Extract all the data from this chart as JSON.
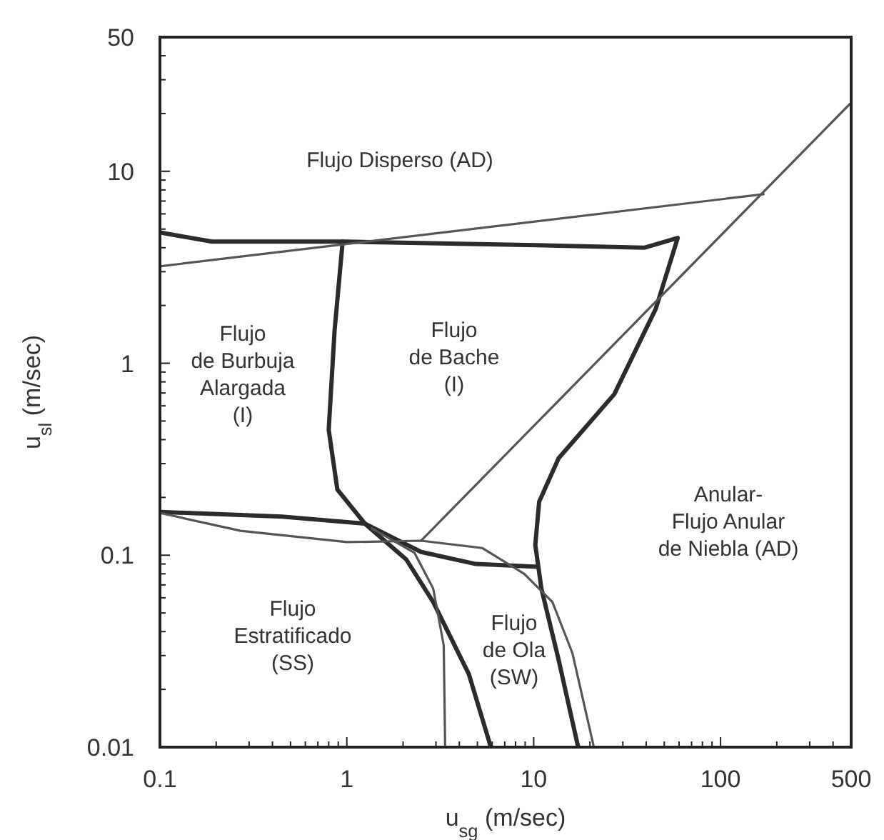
{
  "chart_data": {
    "type": "line",
    "xlabel": "u$_{sg}$ (m/sec)",
    "ylabel": "u$_{sl}$ (m/sec)",
    "log": "xy",
    "grid": false,
    "marker": "none",
    "line_style": "solid",
    "xlim": [
      0.1,
      500
    ],
    "ylim": [
      0.01,
      50
    ],
    "xticks": [
      0.1,
      {
        "value": 0.2,
        "label": null
      },
      {
        "value": 0.3,
        "label": null
      },
      {
        "value": 0.4,
        "label": null
      },
      {
        "value": 0.5,
        "label": null
      },
      {
        "value": 0.6,
        "label": null
      },
      {
        "value": 0.7,
        "label": null
      },
      {
        "value": 0.8,
        "label": null
      },
      {
        "value": 0.9,
        "label": null
      },
      1,
      {
        "value": 2,
        "label": null
      },
      {
        "value": 3,
        "label": null
      },
      {
        "value": 4,
        "label": null
      },
      {
        "value": 5,
        "label": null
      },
      {
        "value": 6,
        "label": null
      },
      {
        "value": 7,
        "label": null
      },
      {
        "value": 8,
        "label": null
      },
      {
        "value": 9,
        "label": null
      },
      10,
      {
        "value": 20,
        "label": null
      },
      {
        "value": 30,
        "label": null
      },
      {
        "value": 40,
        "label": null
      },
      {
        "value": 50,
        "label": null
      },
      {
        "value": 60,
        "label": null
      },
      {
        "value": 70,
        "label": null
      },
      {
        "value": 80,
        "label": null
      },
      {
        "value": 90,
        "label": null
      },
      100,
      {
        "value": 200,
        "label": null
      },
      {
        "value": 300,
        "label": null
      },
      {
        "value": 400,
        "label": null
      },
      500
    ],
    "yticks": [
      0.01,
      {
        "value": 0.02,
        "label": null
      },
      {
        "value": 0.03,
        "label": null
      },
      {
        "value": 0.04,
        "label": null
      },
      {
        "value": 0.05,
        "label": null
      },
      {
        "value": 0.06,
        "label": null
      },
      {
        "value": 0.07,
        "label": null
      },
      {
        "value": 0.08,
        "label": null
      },
      {
        "value": 0.09,
        "label": null
      },
      0.1,
      {
        "value": 0.2,
        "label": null
      },
      {
        "value": 0.3,
        "label": null
      },
      {
        "value": 0.4,
        "label": null
      },
      {
        "value": 0.5,
        "label": null
      },
      {
        "value": 0.6,
        "label": null
      },
      {
        "value": 0.7,
        "label": null
      },
      {
        "value": 0.8,
        "label": null
      },
      {
        "value": 0.9,
        "label": null
      },
      1,
      {
        "value": 2,
        "label": null
      },
      {
        "value": 3,
        "label": null
      },
      {
        "value": 4,
        "label": null
      },
      {
        "value": 5,
        "label": null
      },
      {
        "value": 6,
        "label": null
      },
      {
        "value": 7,
        "label": null
      },
      {
        "value": 8,
        "label": null
      },
      {
        "value": 9,
        "label": null
      },
      10,
      {
        "value": 20,
        "label": null
      },
      {
        "value": 30,
        "label": null
      },
      {
        "value": 40,
        "label": null
      },
      50
    ],
    "series": [
      {
        "color": "#2b2b2b",
        "x": [
          0.1,
          0.19,
          1,
          13.6,
          39,
          59,
          45,
          27,
          13.6,
          10.7,
          10.2,
          11,
          13.6,
          17.3
        ],
        "values": [
          4.8,
          4.3,
          4.3,
          4.1,
          4.0,
          4.5,
          1.92,
          0.69,
          0.32,
          0.19,
          0.113,
          0.067,
          0.0285,
          0.01
        ]
      },
      {
        "color": "#2b2b2b",
        "x": [
          0.95,
          0.86,
          0.8,
          0.89,
          1.25,
          2.08,
          2.9,
          4.5,
          5.9
        ],
        "values": [
          4.3,
          1.48,
          0.45,
          0.22,
          0.146,
          0.095,
          0.057,
          0.024,
          0.01
        ]
      },
      {
        "color": "#2b2b2b",
        "x": [
          0.1,
          0.45,
          1.25,
          2.5,
          4.9,
          10.5
        ],
        "values": [
          0.168,
          0.159,
          0.146,
          0.104,
          0.09,
          0.087
        ]
      },
      {
        "color": "#555555",
        "x": [
          0.1,
          170
        ],
        "values": [
          3.2,
          7.6
        ]
      },
      {
        "color": "#555555",
        "x": [
          2.5,
          500
        ],
        "values": [
          0.119,
          22.8
        ]
      },
      {
        "color": "#555555",
        "x": [
          0.1,
          0.27,
          1,
          2.5,
          5.3,
          8.9,
          12.6,
          16.1,
          21
        ],
        "values": [
          0.166,
          0.134,
          0.117,
          0.119,
          0.109,
          0.08,
          0.057,
          0.031,
          0.01
        ]
      },
      {
        "color": "#555555",
        "x": [
          1.36,
          2.3,
          2.9,
          3.3,
          3.36
        ],
        "values": [
          0.138,
          0.103,
          0.067,
          0.034,
          0.01
        ]
      }
    ],
    "annotations": [
      "Flujo Disperso (AD)",
      "Flujo\nde Burbuja\nAlargada\n(I)",
      "Flujo\nde Bache\n(I)",
      "Anular-\nFlujo Anular\nde Niebla (AD)",
      "Flujo\nEstratificado\n(SS)",
      "Flujo\nde Ola\n(SW)"
    ]
  }
}
